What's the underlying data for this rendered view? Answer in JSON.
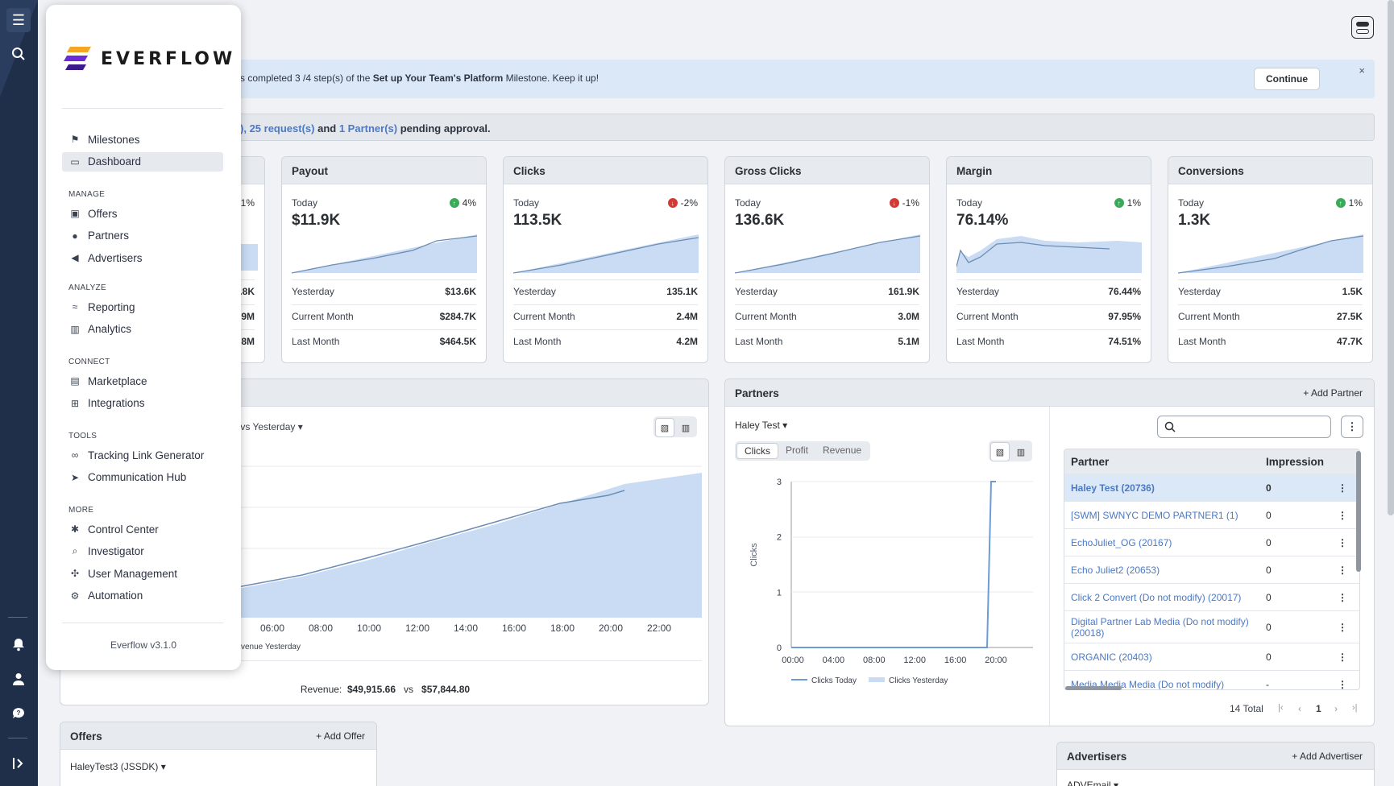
{
  "menu": {
    "logo_text": "EVERFLOW",
    "items_top": [
      {
        "label": "Milestones",
        "icon": "flag-icon"
      },
      {
        "label": "Dashboard",
        "icon": "monitor-icon",
        "active": true
      }
    ],
    "sections": [
      {
        "title": "MANAGE",
        "items": [
          {
            "label": "Offers",
            "icon": "offers-icon"
          },
          {
            "label": "Partners",
            "icon": "person-icon"
          },
          {
            "label": "Advertisers",
            "icon": "megaphone-icon"
          }
        ]
      },
      {
        "title": "ANALYZE",
        "items": [
          {
            "label": "Reporting",
            "icon": "reporting-icon"
          },
          {
            "label": "Analytics",
            "icon": "analytics-icon"
          }
        ]
      },
      {
        "title": "CONNECT",
        "items": [
          {
            "label": "Marketplace",
            "icon": "store-icon"
          },
          {
            "label": "Integrations",
            "icon": "integrations-icon"
          }
        ]
      },
      {
        "title": "TOOLS",
        "items": [
          {
            "label": "Tracking Link Generator",
            "icon": "link-icon"
          },
          {
            "label": "Communication Hub",
            "icon": "send-icon"
          }
        ]
      },
      {
        "title": "MORE",
        "items": [
          {
            "label": "Control Center",
            "icon": "gear-icon"
          },
          {
            "label": "Investigator",
            "icon": "investigator-icon"
          },
          {
            "label": "User Management",
            "icon": "users-icon"
          },
          {
            "label": "Automation",
            "icon": "automation-icon"
          }
        ]
      }
    ],
    "version": "Everflow v3.1.0"
  },
  "banner": {
    "text_pre": "s completed 3 /4 step(s) of the ",
    "text_bold": "Set up Your Team's Platform",
    "text_post": " Milestone. Keep it up!",
    "continue_label": "Continue",
    "close": "×"
  },
  "pending": {
    "frag1": "), ",
    "requests": "25 request(s)",
    "and": " and ",
    "partners": "1 Partner(s)",
    "suffix": " pending approval."
  },
  "partial_card": {
    "change": "1%",
    "v1": ".8K",
    "v2": "9M",
    "v3": "8M"
  },
  "stats": [
    {
      "title": "Payout",
      "today_label": "Today",
      "dir": "up",
      "change": "4%",
      "value": "$11.9K",
      "rows": [
        {
          "label": "Yesterday",
          "value": "$13.6K"
        },
        {
          "label": "Current Month",
          "value": "$284.7K"
        },
        {
          "label": "Last Month",
          "value": "$464.5K"
        }
      ]
    },
    {
      "title": "Clicks",
      "today_label": "Today",
      "dir": "down",
      "change": "-2%",
      "value": "113.5K",
      "rows": [
        {
          "label": "Yesterday",
          "value": "135.1K"
        },
        {
          "label": "Current Month",
          "value": "2.4M"
        },
        {
          "label": "Last Month",
          "value": "4.2M"
        }
      ]
    },
    {
      "title": "Gross Clicks",
      "today_label": "Today",
      "dir": "down",
      "change": "-1%",
      "value": "136.6K",
      "rows": [
        {
          "label": "Yesterday",
          "value": "161.9K"
        },
        {
          "label": "Current Month",
          "value": "3.0M"
        },
        {
          "label": "Last Month",
          "value": "5.1M"
        }
      ]
    },
    {
      "title": "Margin",
      "today_label": "Today",
      "dir": "up",
      "change": "1%",
      "value": "76.14%",
      "rows": [
        {
          "label": "Yesterday",
          "value": "76.44%"
        },
        {
          "label": "Current Month",
          "value": "97.95%"
        },
        {
          "label": "Last Month",
          "value": "74.51%"
        }
      ]
    },
    {
      "title": "Conversions",
      "today_label": "Today",
      "dir": "up",
      "change": "1%",
      "value": "1.3K",
      "rows": [
        {
          "label": "Yesterday",
          "value": "1.5K"
        },
        {
          "label": "Current Month",
          "value": "27.5K"
        },
        {
          "label": "Last Month",
          "value": "47.7K"
        }
      ]
    }
  ],
  "revenue_panel": {
    "selector": "y vs Yesterday",
    "x_ticks": [
      "06:00",
      "08:00",
      "10:00",
      "12:00",
      "14:00",
      "16:00",
      "18:00",
      "20:00",
      "22:00"
    ],
    "legend": "venue Yesterday",
    "footer_label": "Revenue:",
    "footer_today": "$49,915.66",
    "footer_vs": "vs",
    "footer_yesterday": "$57,844.80"
  },
  "partners_panel": {
    "title": "Partners",
    "add_label": "Add Partner",
    "selector": "Haley Test",
    "tabs": [
      "Clicks",
      "Profit",
      "Revenue"
    ],
    "y_label": "Clicks",
    "y_ticks": [
      "3",
      "2",
      "1",
      "0"
    ],
    "x_ticks": [
      "00:00",
      "04:00",
      "08:00",
      "12:00",
      "16:00",
      "20:00"
    ],
    "legend_today": "Clicks Today",
    "legend_yesterday": "Clicks Yesterday",
    "table_headers": [
      "Partner",
      "Impression"
    ],
    "rows": [
      {
        "name": "Haley Test (20736)",
        "impressions": "0",
        "selected": true
      },
      {
        "name": "[SWM] SWNYC DEMO PARTNER1 (1)",
        "impressions": "0"
      },
      {
        "name": "EchoJuliet_OG (20167)",
        "impressions": "0"
      },
      {
        "name": "Echo Juliet2 (20653)",
        "impressions": "0"
      },
      {
        "name": "Click 2 Convert (Do not modify) (20017)",
        "impressions": "0"
      },
      {
        "name": "Digital Partner Lab Media (Do not modify) (20018)",
        "impressions": "0"
      },
      {
        "name": "ORGANIC (20403)",
        "impressions": "0"
      },
      {
        "name": "Media Media Media (Do not modify)",
        "impressions": "-"
      }
    ],
    "total": "14 Total",
    "page": "1"
  },
  "offers_panel": {
    "title": "Offers",
    "add_label": "Add Offer",
    "selector": "HaleyTest3 (JSSDK)"
  },
  "advertisers_panel": {
    "title": "Advertisers",
    "add_label": "Add Advertiser",
    "selector": "ADVEmail"
  }
}
